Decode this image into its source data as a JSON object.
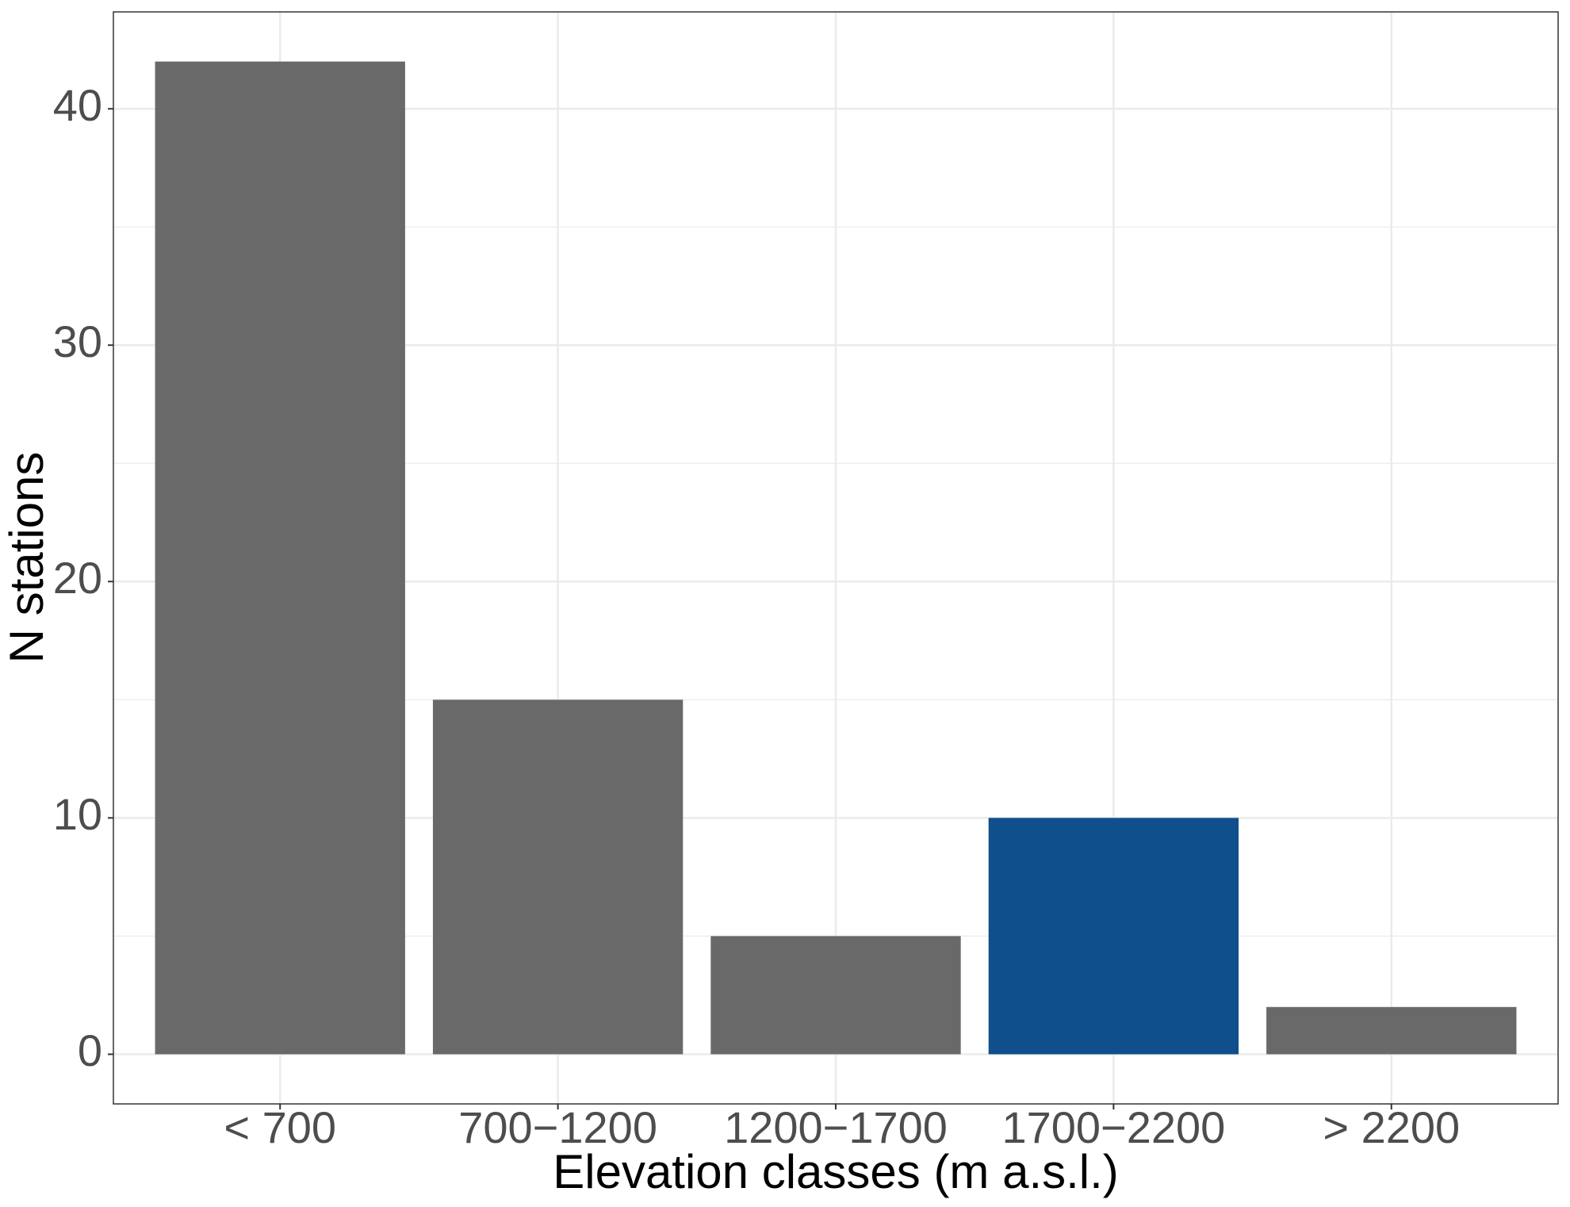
{
  "chart_data": {
    "type": "bar",
    "x_label": "Elevation classes (m a.s.l.)",
    "y_label": "N stations",
    "categories": [
      "< 700",
      "700−1200",
      "1200−1700",
      "1700−2200",
      "> 2200"
    ],
    "values": [
      42,
      15,
      5,
      10,
      2
    ],
    "colors": [
      "#696969",
      "#696969",
      "#696969",
      "#0f4f8b",
      "#696969"
    ],
    "ylim": [
      -2.1,
      44.1
    ],
    "yticks": [
      0,
      10,
      20,
      30,
      40
    ],
    "y_minor_ticks": [
      5,
      15,
      25,
      35
    ],
    "grid": true
  }
}
